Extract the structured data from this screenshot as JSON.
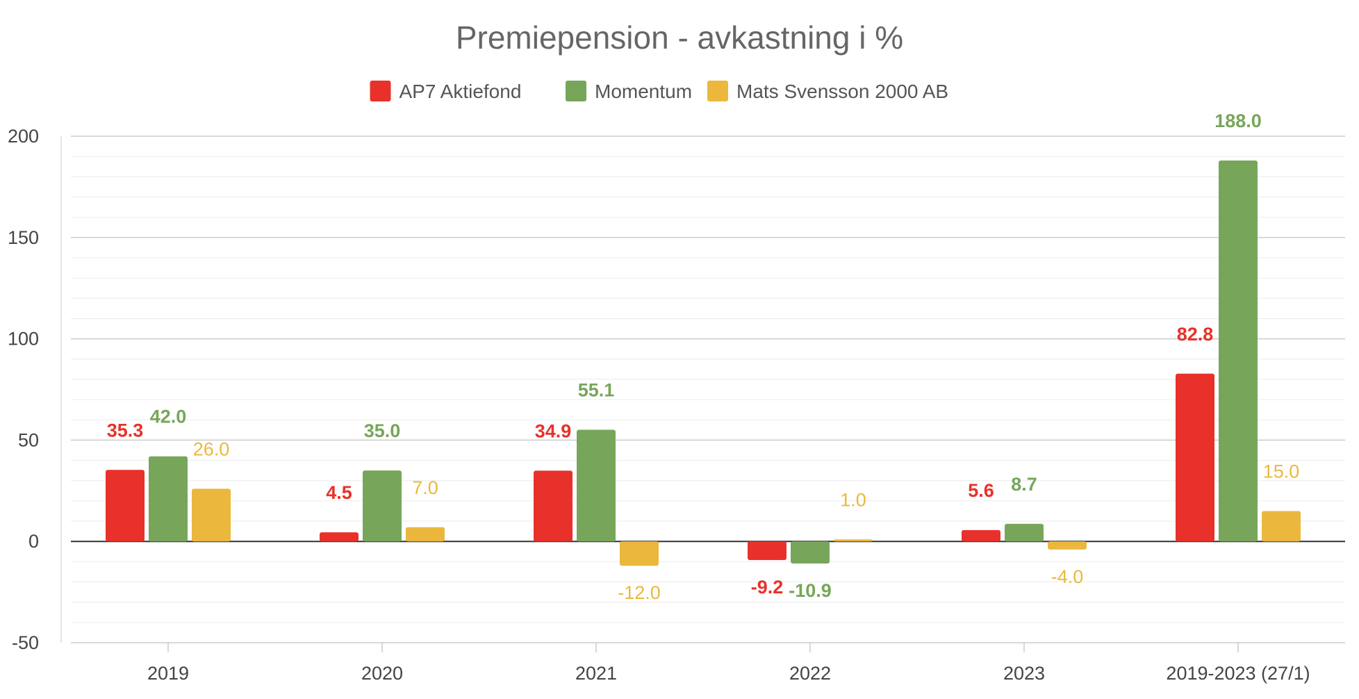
{
  "chart_data": {
    "type": "bar",
    "title": "Premiepension - avkastning i %",
    "categories": [
      "2019",
      "2020",
      "2021",
      "2022",
      "2023",
      "2019-2023 (27/1)"
    ],
    "series": [
      {
        "name": "AP7 Aktiefond",
        "color": "#e8312a",
        "values": [
          35.3,
          4.5,
          34.9,
          -9.2,
          5.6,
          82.8
        ],
        "labels": [
          "35.3",
          "4.5",
          "34.9",
          "-9.2",
          "5.6",
          "82.8"
        ],
        "label_bold": true
      },
      {
        "name": "Momentum",
        "color": "#77a65a",
        "values": [
          42.0,
          35.0,
          55.1,
          -10.9,
          8.7,
          188.0
        ],
        "labels": [
          "42.0",
          "35.0",
          "55.1",
          "-10.9",
          "8.7",
          "188.0"
        ],
        "label_bold": true
      },
      {
        "name": "Mats Svensson 2000 AB",
        "color": "#ebb83d",
        "values": [
          26.0,
          7.0,
          -12.0,
          1.0,
          -4.0,
          15.0
        ],
        "labels": [
          "26.0",
          "7.0",
          "-12.0",
          "1.0",
          "-4.0",
          "15.0"
        ],
        "label_bold": false
      }
    ],
    "ylim": [
      -50,
      200
    ],
    "yticks": [
      -50,
      0,
      50,
      100,
      150,
      200
    ],
    "ytick_labels": [
      "-50",
      "0",
      "50",
      "100",
      "150",
      "200"
    ],
    "xlabel": "",
    "ylabel": "",
    "grid": true,
    "legend_position": "top-center"
  }
}
